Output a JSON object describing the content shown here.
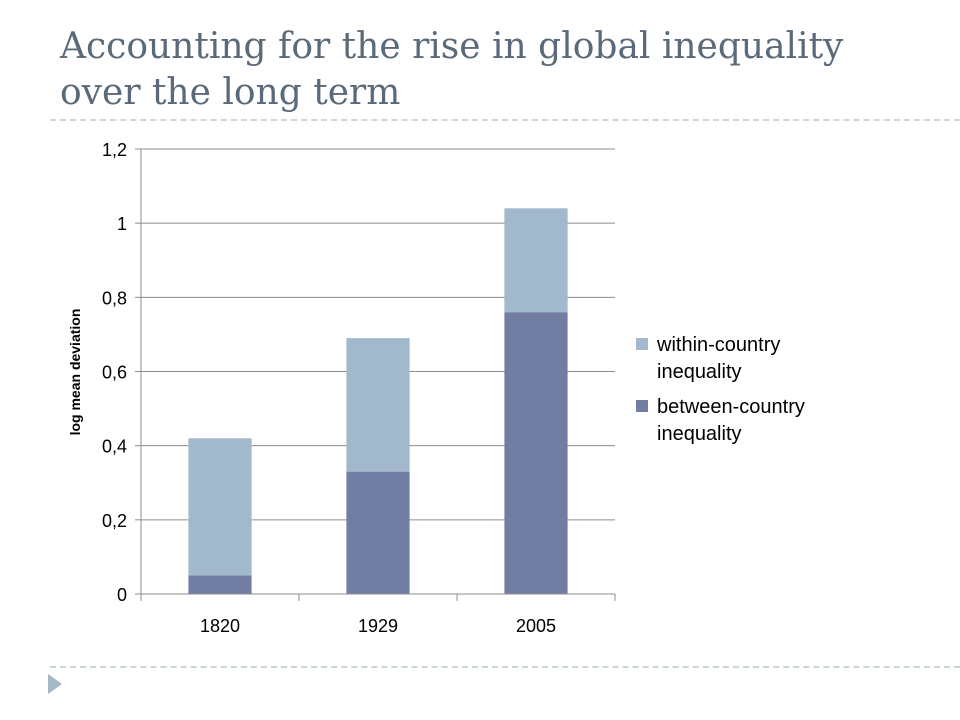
{
  "slide": {
    "title": "Accounting for the rise in global inequality over the long term"
  },
  "chart_data": {
    "type": "bar",
    "stacked": true,
    "categories": [
      "1820",
      "1929",
      "2005"
    ],
    "series": [
      {
        "name": "between-country inequality",
        "values": [
          0.05,
          0.33,
          0.76
        ],
        "color": "#727da3"
      },
      {
        "name": "within-country inequality",
        "values": [
          0.37,
          0.36,
          0.28
        ],
        "color": "#a2b8cc"
      }
    ],
    "ylabel": "log mean deviation",
    "xlabel": "",
    "ylim": [
      0,
      1.2
    ],
    "yticks": [
      0,
      0.2,
      0.4,
      0.6,
      0.8,
      1,
      1.2
    ],
    "ytick_labels": [
      "0",
      "0,2",
      "0,4",
      "0,6",
      "0,8",
      "1",
      "1,2"
    ],
    "grid": true,
    "legend_position": "right",
    "legend_order": [
      "within-country inequality",
      "between-country inequality"
    ]
  }
}
